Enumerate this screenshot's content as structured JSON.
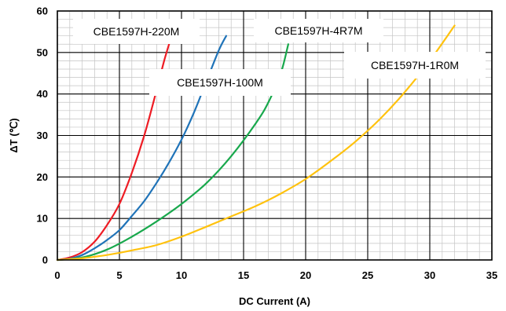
{
  "chart_data": {
    "type": "line",
    "xlabel": "DC Current (A)",
    "ylabel": "ΔT (℃)",
    "xlim": [
      0,
      35
    ],
    "ylim": [
      0,
      60
    ],
    "x_ticks": [
      0,
      5,
      10,
      15,
      20,
      25,
      30,
      35
    ],
    "y_ticks": [
      0,
      10,
      20,
      30,
      40,
      50,
      60
    ],
    "grid": {
      "major": true,
      "minor": true
    },
    "legend": "labels placed directly on the plot",
    "series": [
      {
        "name": "CBE1597H-220M",
        "color": "#ee1c24",
        "points": [
          [
            0,
            0
          ],
          [
            1,
            0.6
          ],
          [
            2,
            1.9
          ],
          [
            3,
            4.4
          ],
          [
            4,
            8.4
          ],
          [
            5,
            13.5
          ],
          [
            6,
            21
          ],
          [
            7,
            30
          ],
          [
            8,
            41
          ],
          [
            8.6,
            48
          ],
          [
            9.1,
            53
          ]
        ]
      },
      {
        "name": "CBE1597H-100M",
        "color": "#1f73b8",
        "points": [
          [
            0,
            0
          ],
          [
            1,
            0.3
          ],
          [
            2,
            1.2
          ],
          [
            3,
            2.8
          ],
          [
            4,
            4.8
          ],
          [
            5,
            7.2
          ],
          [
            6,
            10.6
          ],
          [
            7,
            14.2
          ],
          [
            8,
            18.6
          ],
          [
            9,
            23.5
          ],
          [
            10,
            29
          ],
          [
            11,
            35.5
          ],
          [
            12,
            43
          ],
          [
            13,
            50.5
          ],
          [
            13.6,
            54
          ]
        ]
      },
      {
        "name": "CBE1597H-4R7M",
        "color": "#18a84c",
        "points": [
          [
            0,
            0
          ],
          [
            2,
            0.6
          ],
          [
            4,
            2.5
          ],
          [
            6,
            5.6
          ],
          [
            8,
            9.3
          ],
          [
            10,
            13.5
          ],
          [
            12,
            18.5
          ],
          [
            14,
            25
          ],
          [
            16,
            33
          ],
          [
            17,
            38
          ],
          [
            18,
            45
          ],
          [
            18.6,
            52
          ]
        ]
      },
      {
        "name": "CBE1597H-1R0M",
        "color": "#ffc20e",
        "points": [
          [
            0,
            0
          ],
          [
            2,
            0.4
          ],
          [
            4,
            1.2
          ],
          [
            6,
            2.3
          ],
          [
            8,
            3.6
          ],
          [
            10,
            5.6
          ],
          [
            12,
            8
          ],
          [
            14,
            10.5
          ],
          [
            16,
            13
          ],
          [
            18,
            16
          ],
          [
            20,
            19.5
          ],
          [
            22,
            23.8
          ],
          [
            24,
            28.5
          ],
          [
            26,
            34
          ],
          [
            28,
            40.5
          ],
          [
            30,
            48
          ],
          [
            32,
            56.5
          ]
        ]
      }
    ]
  }
}
